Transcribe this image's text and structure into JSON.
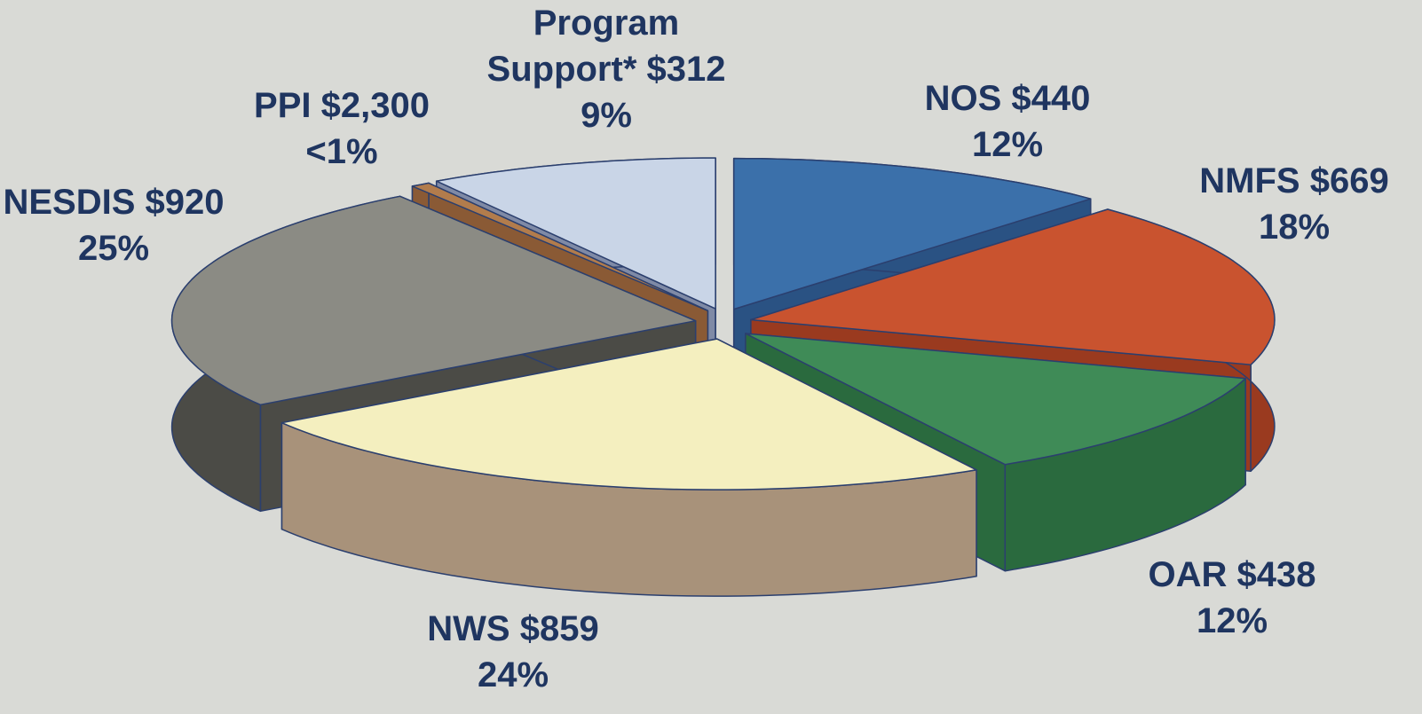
{
  "chart_data": {
    "type": "pie3d",
    "categories": [
      "NOS $440",
      "NMFS $669",
      "OAR $438",
      "NWS $859",
      "NESDIS $920",
      "PPI $2,300",
      "Program Support* $312"
    ],
    "values": [
      12,
      18,
      12,
      24,
      25,
      0.6,
      9
    ],
    "value_labels": [
      "12%",
      "18%",
      "12%",
      "24%",
      "25%",
      "<1%",
      "9%"
    ],
    "colors": [
      "#3b70aa",
      "#c9532f",
      "#3f8b57",
      "#f4efbf",
      "#8b8b84",
      "#b27c4c",
      "#c9d5e7"
    ],
    "side_colors": [
      "#2a5283",
      "#9a3a1f",
      "#2a6a3e",
      "#a8927a",
      "#4b4b46",
      "#8a5a35",
      "#7f8aa6"
    ]
  }
}
